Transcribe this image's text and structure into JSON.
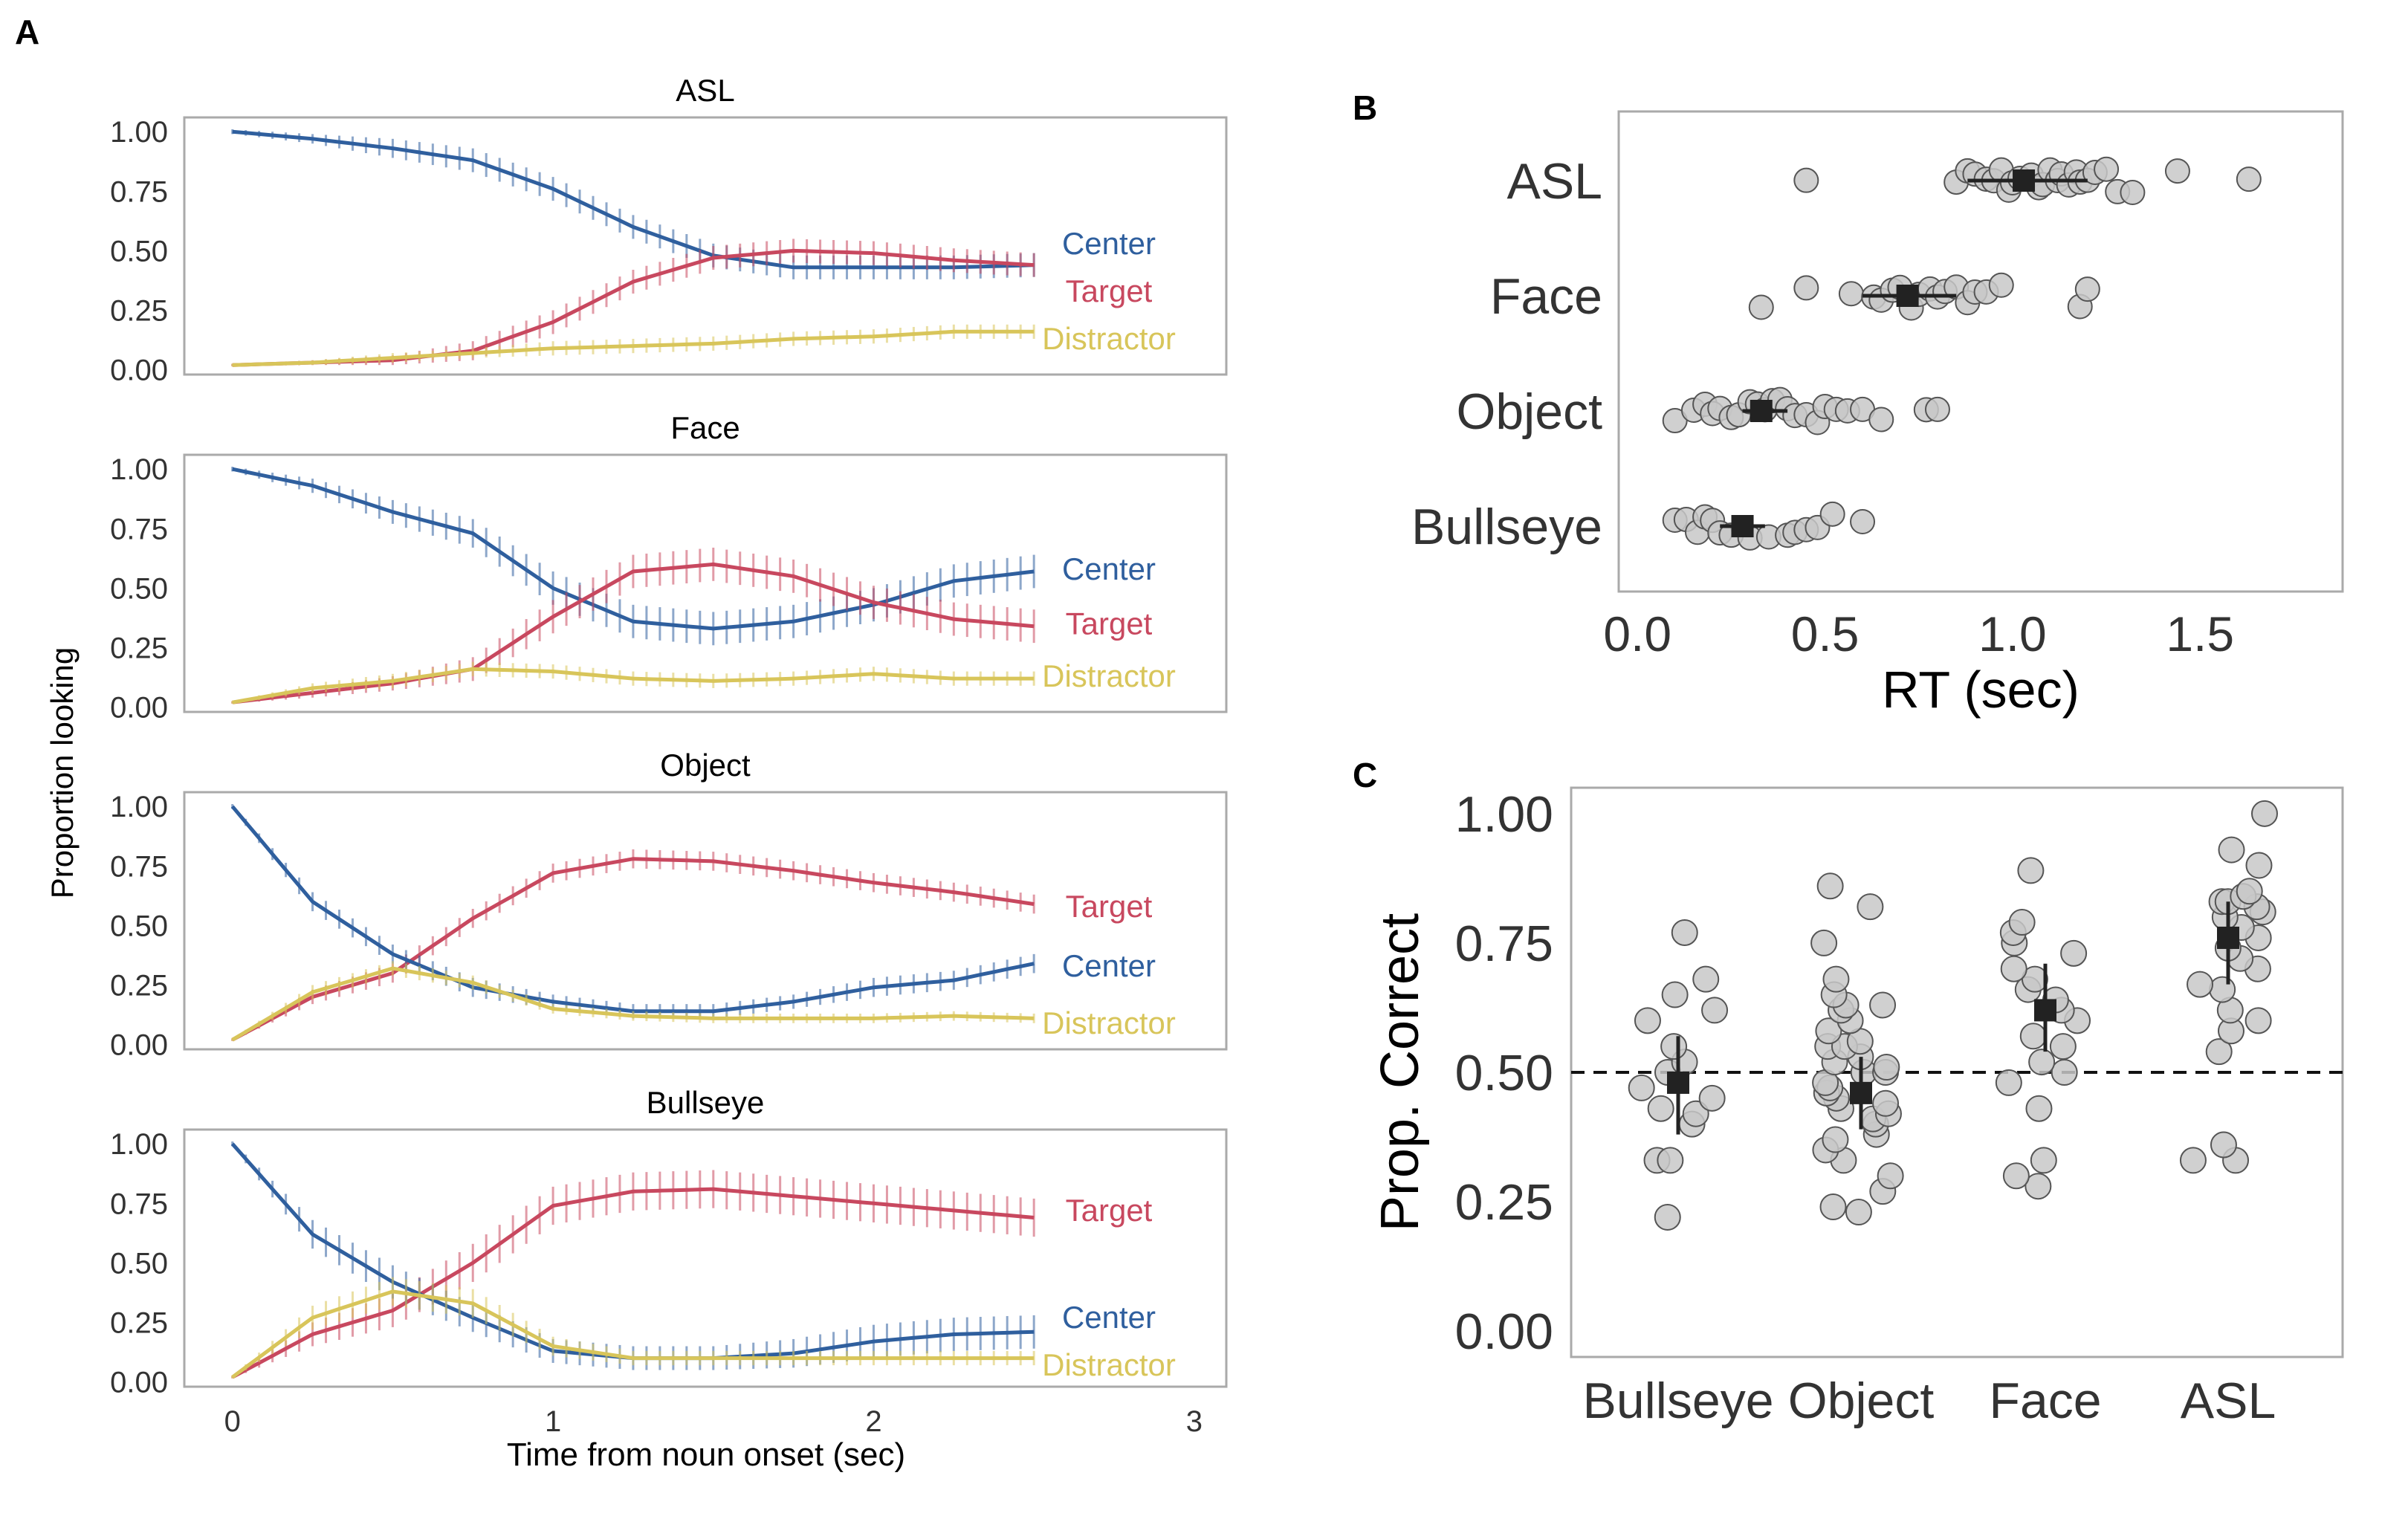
{
  "panel_labels": {
    "a": "A",
    "b": "B",
    "c": "C"
  },
  "colors": {
    "center": "#2f5f9e",
    "target": "#c8485f",
    "distractor": "#d8c55a",
    "point_fill": "#c8c8c8",
    "point_stroke": "#555555",
    "mean": "#222222",
    "frame": "#aaaaaa"
  },
  "chart_data": [
    {
      "type": "line",
      "panel": "A",
      "ylabel": "Proportion looking",
      "xlabel": "Time from noun onset (sec)",
      "xlim": [
        -0.15,
        3.1
      ],
      "ylim": [
        -0.02,
        1.06
      ],
      "xticks": [
        0,
        1,
        2,
        3
      ],
      "yticks": [
        0.0,
        0.25,
        0.5,
        0.75,
        1.0
      ],
      "ytick_labels": [
        "0.00",
        "0.25",
        "0.50",
        "0.75",
        "1.00"
      ],
      "grid": false,
      "subplots": [
        {
          "title": "ASL",
          "x": [
            0,
            0.25,
            0.5,
            0.75,
            1.0,
            1.25,
            1.5,
            1.75,
            2.0,
            2.25,
            2.5
          ],
          "series": [
            {
              "name": "Center",
              "key": "center",
              "values": [
                1.0,
                0.97,
                0.93,
                0.88,
                0.76,
                0.6,
                0.48,
                0.43,
                0.43,
                0.43,
                0.44
              ],
              "err": [
                0.01,
                0.02,
                0.04,
                0.05,
                0.05,
                0.05,
                0.05,
                0.05,
                0.05,
                0.05,
                0.05
              ]
            },
            {
              "name": "Target",
              "key": "target",
              "values": [
                0.02,
                0.03,
                0.04,
                0.08,
                0.2,
                0.37,
                0.47,
                0.5,
                0.49,
                0.46,
                0.44
              ],
              "err": [
                0.005,
                0.01,
                0.02,
                0.04,
                0.05,
                0.05,
                0.05,
                0.05,
                0.05,
                0.05,
                0.05
              ]
            },
            {
              "name": "Distractor",
              "key": "distractor",
              "values": [
                0.02,
                0.03,
                0.05,
                0.07,
                0.09,
                0.1,
                0.11,
                0.13,
                0.14,
                0.16,
                0.16
              ],
              "err": [
                0.005,
                0.01,
                0.02,
                0.02,
                0.03,
                0.03,
                0.03,
                0.03,
                0.03,
                0.03,
                0.03
              ]
            }
          ],
          "label_order": [
            "Center",
            "Target",
            "Distractor"
          ],
          "label_y": [
            0.53,
            0.33,
            0.13
          ]
        },
        {
          "title": "Face",
          "x": [
            0,
            0.25,
            0.5,
            0.75,
            1.0,
            1.25,
            1.5,
            1.75,
            2.0,
            2.25,
            2.5
          ],
          "series": [
            {
              "name": "Center",
              "key": "center",
              "values": [
                1.0,
                0.93,
                0.82,
                0.73,
                0.5,
                0.36,
                0.33,
                0.36,
                0.43,
                0.53,
                0.57
              ],
              "err": [
                0.01,
                0.03,
                0.05,
                0.06,
                0.07,
                0.07,
                0.07,
                0.07,
                0.07,
                0.07,
                0.07
              ]
            },
            {
              "name": "Target",
              "key": "target",
              "values": [
                0.02,
                0.06,
                0.1,
                0.16,
                0.38,
                0.57,
                0.6,
                0.55,
                0.44,
                0.37,
                0.34
              ],
              "err": [
                0.005,
                0.02,
                0.03,
                0.05,
                0.07,
                0.07,
                0.07,
                0.07,
                0.07,
                0.07,
                0.07
              ]
            },
            {
              "name": "Distractor",
              "key": "distractor",
              "values": [
                0.02,
                0.08,
                0.11,
                0.16,
                0.15,
                0.12,
                0.11,
                0.12,
                0.14,
                0.12,
                0.12
              ],
              "err": [
                0.005,
                0.02,
                0.03,
                0.03,
                0.03,
                0.03,
                0.03,
                0.03,
                0.03,
                0.03,
                0.03
              ]
            }
          ],
          "label_order": [
            "Center",
            "Target",
            "Distractor"
          ],
          "label_y": [
            0.58,
            0.35,
            0.13
          ]
        },
        {
          "title": "Object",
          "x": [
            0,
            0.25,
            0.5,
            0.75,
            1.0,
            1.25,
            1.5,
            1.75,
            2.0,
            2.25,
            2.5
          ],
          "series": [
            {
              "name": "Target",
              "key": "target",
              "values": [
                0.02,
                0.2,
                0.3,
                0.53,
                0.72,
                0.78,
                0.77,
                0.73,
                0.68,
                0.64,
                0.59
              ],
              "err": [
                0.005,
                0.03,
                0.04,
                0.04,
                0.04,
                0.04,
                0.04,
                0.04,
                0.04,
                0.04,
                0.04
              ]
            },
            {
              "name": "Center",
              "key": "center",
              "values": [
                1.0,
                0.6,
                0.38,
                0.24,
                0.18,
                0.14,
                0.14,
                0.18,
                0.24,
                0.27,
                0.34
              ],
              "err": [
                0.01,
                0.04,
                0.04,
                0.04,
                0.03,
                0.03,
                0.03,
                0.03,
                0.04,
                0.04,
                0.04
              ]
            },
            {
              "name": "Distractor",
              "key": "distractor",
              "values": [
                0.02,
                0.22,
                0.32,
                0.26,
                0.15,
                0.12,
                0.11,
                0.11,
                0.11,
                0.12,
                0.11
              ],
              "err": [
                0.005,
                0.03,
                0.03,
                0.03,
                0.02,
                0.02,
                0.02,
                0.02,
                0.02,
                0.02,
                0.02
              ]
            }
          ],
          "label_order": [
            "Target",
            "Center",
            "Distractor"
          ],
          "label_y": [
            0.58,
            0.33,
            0.09
          ]
        },
        {
          "title": "Bullseye",
          "x": [
            0,
            0.25,
            0.5,
            0.75,
            1.0,
            1.25,
            1.5,
            1.75,
            2.0,
            2.25,
            2.5
          ],
          "series": [
            {
              "name": "Target",
              "key": "target",
              "values": [
                0.02,
                0.2,
                0.3,
                0.5,
                0.74,
                0.8,
                0.81,
                0.78,
                0.75,
                0.72,
                0.69
              ],
              "err": [
                0.005,
                0.05,
                0.07,
                0.08,
                0.08,
                0.08,
                0.08,
                0.08,
                0.08,
                0.08,
                0.08
              ]
            },
            {
              "name": "Center",
              "key": "center",
              "values": [
                1.0,
                0.62,
                0.42,
                0.27,
                0.13,
                0.1,
                0.1,
                0.12,
                0.17,
                0.2,
                0.21
              ],
              "err": [
                0.01,
                0.06,
                0.07,
                0.06,
                0.05,
                0.05,
                0.05,
                0.06,
                0.07,
                0.07,
                0.07
              ]
            },
            {
              "name": "Distractor",
              "key": "distractor",
              "values": [
                0.02,
                0.27,
                0.38,
                0.33,
                0.15,
                0.1,
                0.1,
                0.1,
                0.1,
                0.1,
                0.1
              ],
              "err": [
                0.005,
                0.05,
                0.06,
                0.06,
                0.04,
                0.03,
                0.03,
                0.03,
                0.03,
                0.03,
                0.03
              ]
            }
          ],
          "label_order": [
            "Target",
            "Center",
            "Distractor"
          ],
          "label_y": [
            0.72,
            0.27,
            0.07
          ]
        }
      ]
    },
    {
      "type": "scatter",
      "panel": "B",
      "xlabel": "RT (sec)",
      "xlim": [
        -0.05,
        1.88
      ],
      "xticks": [
        0.0,
        0.5,
        1.0,
        1.5
      ],
      "xtick_labels": [
        "0.0",
        "0.5",
        "1.0",
        "1.5"
      ],
      "categories": [
        "ASL",
        "Face",
        "Object",
        "Bullseye"
      ],
      "grid": false,
      "groups": [
        {
          "category": "ASL",
          "mean": 1.03,
          "ci": [
            0.88,
            1.2
          ],
          "points": [
            0.45,
            0.85,
            0.88,
            0.9,
            0.93,
            0.95,
            0.97,
            0.99,
            1.0,
            1.02,
            1.05,
            1.07,
            1.08,
            1.1,
            1.12,
            1.13,
            1.15,
            1.17,
            1.18,
            1.2,
            1.22,
            1.25,
            1.28,
            1.32,
            1.44,
            1.63
          ]
        },
        {
          "category": "Face",
          "mean": 0.72,
          "ci": [
            0.6,
            0.85
          ],
          "points": [
            0.33,
            0.45,
            0.57,
            0.63,
            0.65,
            0.68,
            0.7,
            0.73,
            0.75,
            0.78,
            0.8,
            0.82,
            0.85,
            0.88,
            0.9,
            0.93,
            0.97,
            1.18,
            1.2
          ]
        },
        {
          "category": "Object",
          "mean": 0.33,
          "ci": [
            0.28,
            0.4
          ],
          "points": [
            0.1,
            0.15,
            0.18,
            0.2,
            0.22,
            0.25,
            0.27,
            0.3,
            0.32,
            0.34,
            0.36,
            0.38,
            0.4,
            0.42,
            0.45,
            0.48,
            0.5,
            0.53,
            0.56,
            0.6,
            0.65,
            0.77,
            0.8
          ]
        },
        {
          "category": "Bullseye",
          "mean": 0.28,
          "ci": [
            0.22,
            0.34
          ],
          "points": [
            0.1,
            0.13,
            0.16,
            0.18,
            0.2,
            0.22,
            0.25,
            0.3,
            0.35,
            0.4,
            0.42,
            0.45,
            0.48,
            0.52,
            0.6
          ]
        }
      ]
    },
    {
      "type": "scatter",
      "panel": "C",
      "ylabel": "Prop. Correct",
      "ylim": [
        -0.05,
        1.05
      ],
      "yticks": [
        0.0,
        0.25,
        0.5,
        0.75,
        1.0
      ],
      "ytick_labels": [
        "0.00",
        "0.25",
        "0.50",
        "0.75",
        "1.00"
      ],
      "categories": [
        "Bullseye",
        "Object",
        "Face",
        "ASL"
      ],
      "chance_line": 0.5,
      "grid": false,
      "groups": [
        {
          "category": "Bullseye",
          "mean": 0.48,
          "ci": [
            0.38,
            0.57
          ],
          "points": [
            0.22,
            0.33,
            0.33,
            0.4,
            0.42,
            0.43,
            0.45,
            0.47,
            0.5,
            0.52,
            0.55,
            0.6,
            0.62,
            0.65,
            0.68,
            0.77
          ]
        },
        {
          "category": "Object",
          "mean": 0.46,
          "ci": [
            0.39,
            0.53
          ],
          "points": [
            0.23,
            0.24,
            0.27,
            0.3,
            0.33,
            0.35,
            0.37,
            0.38,
            0.4,
            0.41,
            0.42,
            0.43,
            0.44,
            0.45,
            0.46,
            0.47,
            0.48,
            0.5,
            0.5,
            0.51,
            0.52,
            0.53,
            0.55,
            0.55,
            0.56,
            0.58,
            0.6,
            0.62,
            0.63,
            0.63,
            0.65,
            0.68,
            0.75,
            0.82,
            0.86
          ]
        },
        {
          "category": "Face",
          "mean": 0.62,
          "ci": [
            0.54,
            0.71
          ],
          "points": [
            0.28,
            0.3,
            0.33,
            0.43,
            0.48,
            0.5,
            0.52,
            0.55,
            0.57,
            0.6,
            0.62,
            0.64,
            0.66,
            0.68,
            0.7,
            0.73,
            0.75,
            0.77,
            0.79,
            0.89
          ]
        },
        {
          "category": "ASL",
          "mean": 0.76,
          "ci": [
            0.67,
            0.83
          ],
          "points": [
            0.33,
            0.33,
            0.36,
            0.54,
            0.58,
            0.6,
            0.62,
            0.66,
            0.67,
            0.7,
            0.72,
            0.74,
            0.76,
            0.78,
            0.8,
            0.81,
            0.82,
            0.83,
            0.83,
            0.84,
            0.85,
            0.9,
            0.93,
            1.0
          ]
        }
      ]
    }
  ]
}
